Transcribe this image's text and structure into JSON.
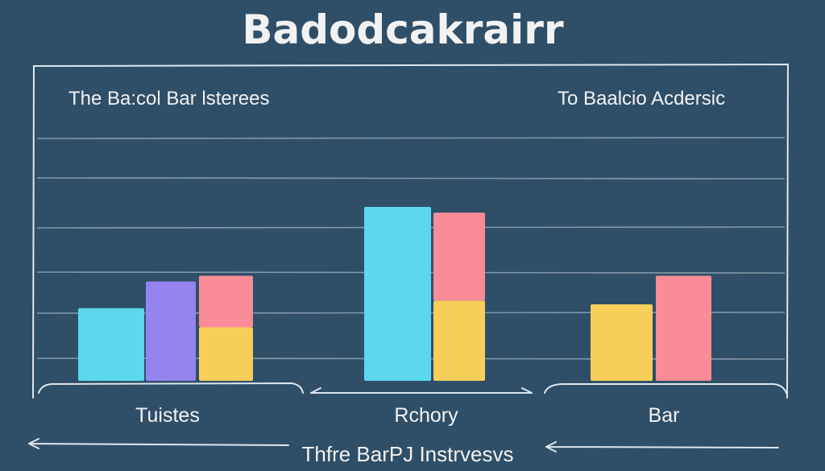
{
  "chart_data": {
    "type": "bar",
    "title": "Badodcakrairr",
    "subtitle_left": "The Ba:col Bar lsterees",
    "subtitle_right": "To Baalcio Acdersic",
    "xlabel": "Thfre BarPJ Instrvesvs",
    "ylim": [
      0,
      100
    ],
    "grid": true,
    "groups": [
      {
        "label": "Tuistes",
        "bars": [
          {
            "color": "#5bd8ee",
            "segments": [
              38
            ]
          },
          {
            "color": "#9583ee",
            "segments": [
              52
            ]
          },
          {
            "color": "#f98c98",
            "segments": [
              28,
              27
            ],
            "bottom_color": "#f8ce5b"
          }
        ]
      },
      {
        "label": "Rchory",
        "bars": [
          {
            "color": "#5bd8ee",
            "segments": [
              91
            ]
          },
          {
            "color": "#f98c98",
            "segments": [
              42,
              46
            ],
            "bottom_color": "#f8ce5b"
          }
        ]
      },
      {
        "label": "Bar",
        "bars": [
          {
            "color": "#f8ce5b",
            "segments": [
              40
            ]
          },
          {
            "color": "#f98c98",
            "segments": [
              55
            ]
          }
        ]
      }
    ]
  }
}
